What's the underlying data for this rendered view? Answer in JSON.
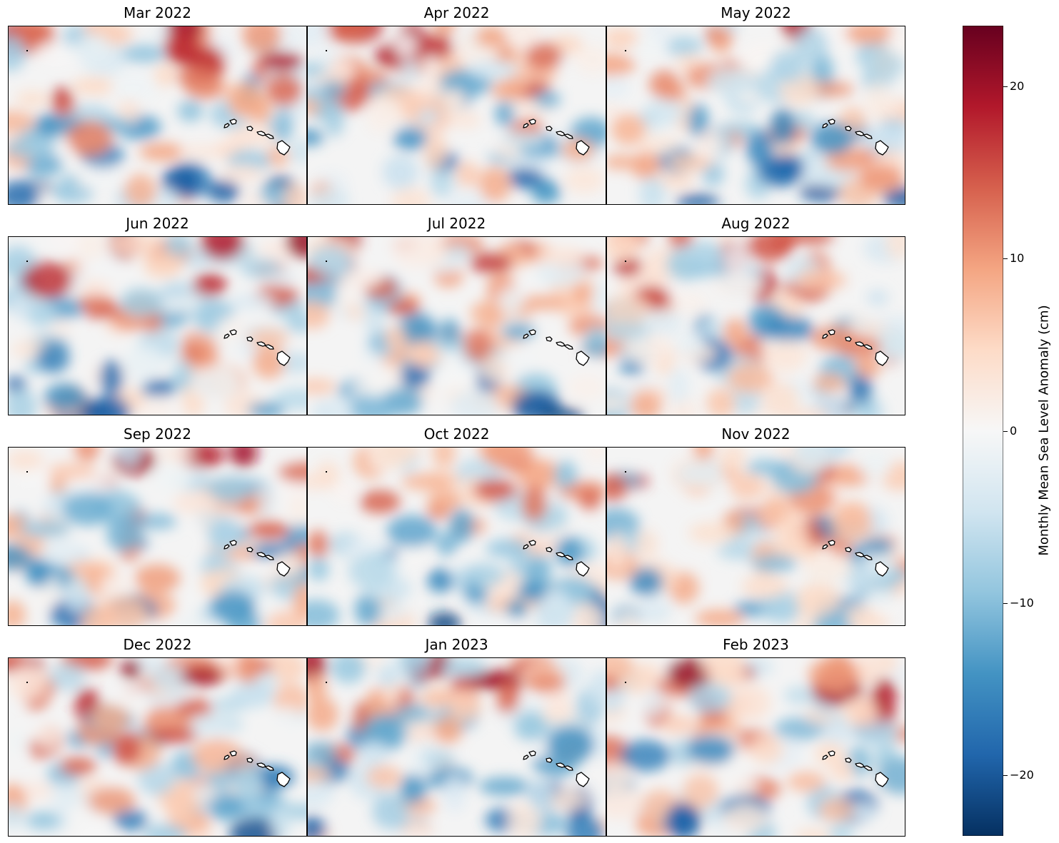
{
  "panels": [
    {
      "title": "Mar 2022",
      "seed": 3
    },
    {
      "title": "Apr 2022",
      "seed": 7
    },
    {
      "title": "May 2022",
      "seed": 11
    },
    {
      "title": "Jun 2022",
      "seed": 17
    },
    {
      "title": "Jul 2022",
      "seed": 23
    },
    {
      "title": "Aug 2022",
      "seed": 29
    },
    {
      "title": "Sep 2022",
      "seed": 31
    },
    {
      "title": "Oct 2022",
      "seed": 37
    },
    {
      "title": "Nov 2022",
      "seed": 41
    },
    {
      "title": "Dec 2022",
      "seed": 43
    },
    {
      "title": "Jan 2023",
      "seed": 47
    },
    {
      "title": "Feb 2023",
      "seed": 53
    }
  ],
  "colorbar": {
    "label": "Monthly Mean Sea Level Anomaly (cm)",
    "min": -23.5,
    "max": 23.5,
    "ticks": [
      {
        "value": 20,
        "label": "20"
      },
      {
        "value": 10,
        "label": "10"
      },
      {
        "value": 0,
        "label": "0"
      },
      {
        "value": -10,
        "label": "−10"
      },
      {
        "value": -20,
        "label": "−20"
      }
    ],
    "colormap": [
      "#053061",
      "#2166ac",
      "#4393c3",
      "#92c5de",
      "#d1e5f0",
      "#f7f7f7",
      "#fddbc7",
      "#f4a582",
      "#d6604d",
      "#b2182b",
      "#67001f"
    ]
  }
}
